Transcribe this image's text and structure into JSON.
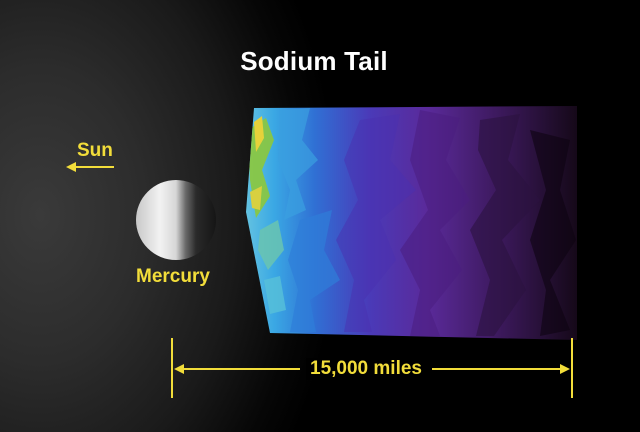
{
  "title": "Sodium Tail",
  "sun": {
    "label": "Sun",
    "icon": "arrow-left-icon"
  },
  "mercury": {
    "label": "Mercury"
  },
  "scale": {
    "label": "15,000 miles"
  },
  "colors": {
    "label_yellow": "#f2dd3a",
    "title_white": "#ffffff",
    "tail_bright": "#a8d23c",
    "tail_cyan": "#3ab4e6",
    "tail_blue": "#3058c8",
    "tail_violet": "#5a2a9a",
    "tail_dark": "#1a0a20"
  }
}
